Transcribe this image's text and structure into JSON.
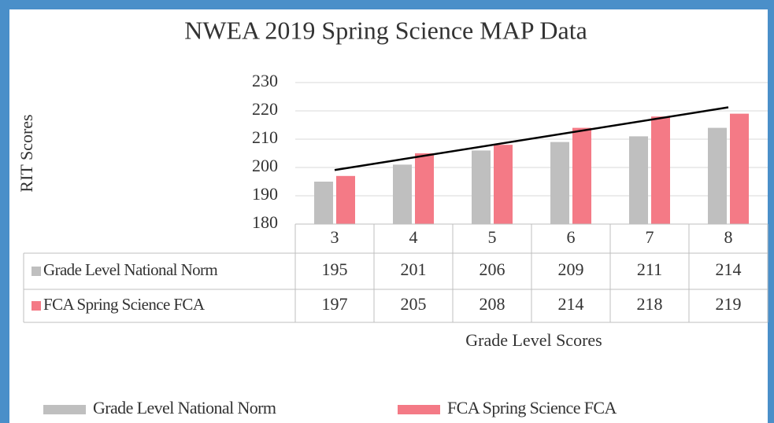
{
  "chart_data": {
    "type": "bar",
    "title": "NWEA  2019 Spring Science MAP Data",
    "y_label": "RIT Scores",
    "x_label": "Grade  Level Scores",
    "categories": [
      "3",
      "4",
      "5",
      "6",
      "7",
      "8"
    ],
    "series": [
      {
        "name": "Grade Level National Norm",
        "color": "#bfbfbf",
        "values": [
          195,
          201,
          206,
          209,
          211,
          214
        ]
      },
      {
        "name": "FCA Spring Science  FCA",
        "color": "#f47a86",
        "values": [
          197,
          205,
          208,
          214,
          218,
          219
        ],
        "trendline": "linear"
      }
    ],
    "ylim": [
      180,
      230
    ],
    "yticks": [
      180,
      190,
      200,
      210,
      220,
      230
    ],
    "grid": true,
    "data_table": true,
    "legend": "bottom"
  }
}
